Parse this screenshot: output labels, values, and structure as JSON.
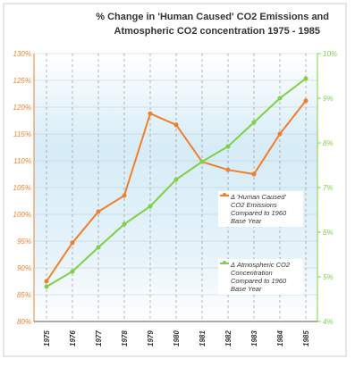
{
  "chart_data": {
    "type": "line",
    "title": "% Change in 'Human Caused' CO2 Emissions and",
    "subtitle": "Atmospheric CO2 concentration 1975 - 1985",
    "categories": [
      "1975",
      "1976",
      "1977",
      "1978",
      "1979",
      "1980",
      "1981",
      "1982",
      "1983",
      "1984",
      "1985"
    ],
    "series": [
      {
        "name": "Δ 'Human Caused' CO2 Emissions Compared to 1960 Base Year",
        "color": "#f07f2c",
        "values": [
          87.5,
          94.7,
          100.5,
          103.5,
          118.8,
          116.7,
          109.8,
          108.3,
          107.5,
          115,
          121.2
        ]
      },
      {
        "name": "Δ Atmospheric CO2 Concentration Compared to 1960 Base Year",
        "color": "#7fd046",
        "axis": "y2",
        "values": [
          4.78,
          5.12,
          5.66,
          6.18,
          6.58,
          7.18,
          7.58,
          7.92,
          8.46,
          9.0,
          9.44
        ]
      }
    ],
    "ylim": [
      80,
      130
    ],
    "yticks": [
      {
        "value": 80,
        "label": "80%"
      },
      {
        "value": 85,
        "label": "85%"
      },
      {
        "value": 90,
        "label": "90%"
      },
      {
        "value": 95,
        "label": "95%"
      },
      {
        "value": 100,
        "label": "100%"
      },
      {
        "value": 105,
        "label": "105%"
      },
      {
        "value": 110,
        "label": "110%"
      },
      {
        "value": 115,
        "label": "115%"
      },
      {
        "value": 120,
        "label": "120%"
      },
      {
        "value": 125,
        "label": "125%"
      },
      {
        "value": 130,
        "label": "130%"
      }
    ],
    "y2lim": [
      4,
      10
    ],
    "y2ticks": [
      {
        "value": 4,
        "label": "4%"
      },
      {
        "value": 5,
        "label": "5%"
      },
      {
        "value": 6,
        "label": "6%"
      },
      {
        "value": 7,
        "label": "7%"
      },
      {
        "value": 8,
        "label": "8%"
      },
      {
        "value": 9,
        "label": "9%"
      },
      {
        "value": 10,
        "label": "10%"
      }
    ],
    "grid": true
  }
}
